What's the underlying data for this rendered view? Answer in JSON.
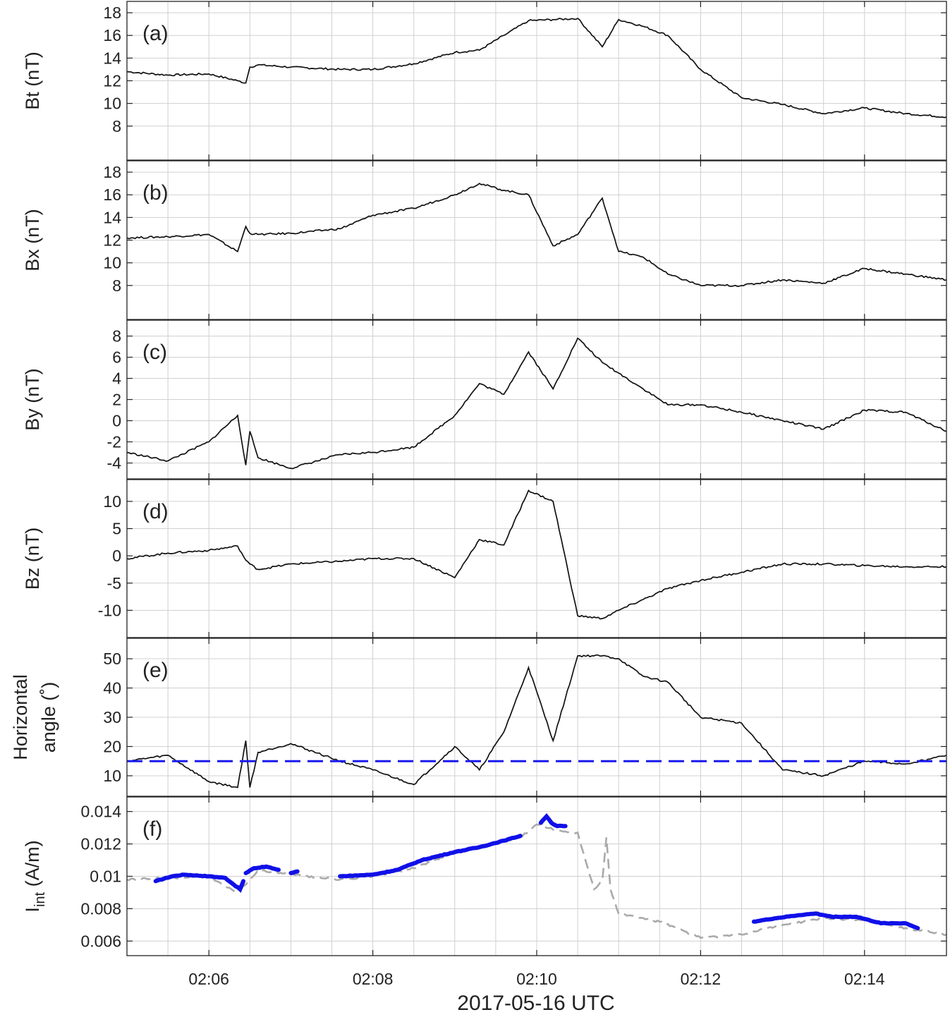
{
  "figure": {
    "xlabel": "2017-05-16 UTC",
    "x_ticks": [
      "02:06",
      "02:08",
      "02:10",
      "02:12",
      "02:14"
    ]
  },
  "chart_data": [
    {
      "type": "line",
      "panel": "(a)",
      "ylabel": "Bt (nT)",
      "xlim": [
        2.0833,
        2.25
      ],
      "ylim": [
        5,
        19
      ],
      "y_ticks": [
        8,
        10,
        12,
        14,
        16,
        18
      ],
      "series": [
        {
          "color": "#111111",
          "x_minutes_after_0205": [
            0,
            0.5,
            1.0,
            1.35,
            1.45,
            1.5,
            1.6,
            2.0,
            2.6,
            3.0,
            3.5,
            4.0,
            4.3,
            4.6,
            4.9,
            5.2,
            5.5,
            5.8,
            6.0,
            6.3,
            6.6,
            7.0,
            7.5,
            8.0,
            8.5,
            9.0,
            9.5,
            10.0
          ],
          "values": [
            12.8,
            12.5,
            12.6,
            12.0,
            11.8,
            13.2,
            13.4,
            13.2,
            13.0,
            13.0,
            13.5,
            14.5,
            14.7,
            16.0,
            17.3,
            17.4,
            17.5,
            15.0,
            17.4,
            16.8,
            16.0,
            13.0,
            10.5,
            9.9,
            9.1,
            9.6,
            9.1,
            8.8
          ]
        }
      ]
    },
    {
      "type": "line",
      "panel": "(b)",
      "ylabel": "Bx (nT)",
      "ylim": [
        5,
        19
      ],
      "y_ticks": [
        8,
        10,
        12,
        14,
        16,
        18
      ],
      "series": [
        {
          "color": "#111111",
          "values": [
            12.2,
            12.3,
            12.5,
            11.0,
            13.2,
            12.6,
            12.5,
            12.6,
            13.0,
            14.2,
            14.8,
            16.0,
            17.0,
            16.4,
            16.0,
            11.5,
            12.5,
            15.7,
            11.0,
            10.5,
            9.0,
            8.0,
            8.0,
            8.5,
            8.2,
            9.5,
            9.0,
            8.5
          ]
        }
      ]
    },
    {
      "type": "line",
      "panel": "(c)",
      "ylabel": "By (nT)",
      "ylim": [
        -5.5,
        9.5
      ],
      "y_ticks": [
        -4,
        -2,
        0,
        2,
        4,
        6,
        8
      ],
      "series": [
        {
          "color": "#111111",
          "values": [
            -3.0,
            -3.8,
            -2.0,
            0.5,
            -4.2,
            -1.0,
            -3.5,
            -4.5,
            -3.2,
            -3.0,
            -2.5,
            0.5,
            3.5,
            2.5,
            6.5,
            3.0,
            7.8,
            5.5,
            4.5,
            3.0,
            1.5,
            1.5,
            0.8,
            0.0,
            -0.8,
            1.0,
            0.8,
            -1.0
          ]
        }
      ]
    },
    {
      "type": "line",
      "panel": "(d)",
      "ylabel": "Bz (nT)",
      "ylim": [
        -15,
        14
      ],
      "y_ticks": [
        -10,
        -5,
        0,
        5,
        10
      ],
      "series": [
        {
          "color": "#111111",
          "values": [
            -0.5,
            0.5,
            1.0,
            1.8,
            -0.8,
            -1.5,
            -2.5,
            -1.5,
            -1.0,
            -0.5,
            -0.5,
            -4.0,
            3.0,
            2.0,
            12.0,
            10.0,
            -11.0,
            -11.5,
            -10.0,
            -8.0,
            -6.0,
            -4.5,
            -3.0,
            -1.5,
            -1.5,
            -1.8,
            -2.0,
            -2.0
          ]
        }
      ]
    },
    {
      "type": "line",
      "panel": "(e)",
      "ylabel": "Horizontal angle (˚)",
      "ylabel_line1": "Horizontal",
      "ylabel_line2": "angle (˚)",
      "ylim": [
        3,
        57
      ],
      "y_ticks": [
        10,
        20,
        30,
        40,
        50
      ],
      "series": [
        {
          "color": "#111111",
          "values": [
            15,
            17,
            8,
            6,
            22,
            6,
            18,
            21,
            15,
            12,
            7,
            20,
            12,
            25,
            47,
            22,
            51,
            51,
            50,
            44,
            42,
            30,
            28,
            12,
            10,
            15,
            14,
            17
          ]
        },
        {
          "name": "",
          "color": "#1a1aee",
          "style": "dashed",
          "constant": 15
        }
      ]
    },
    {
      "type": "line",
      "panel": "(f)",
      "ylabel": "I_int (A/m)",
      "ylabel_main": "I",
      "ylabel_sub": "int",
      "ylabel_unit": " (A/m)",
      "ylim": [
        0.0051,
        0.0149
      ],
      "y_ticks": [
        "0.006",
        "0.008",
        "0.01",
        "0.012",
        "0.014"
      ],
      "y_tick_values": [
        0.006,
        0.008,
        0.01,
        0.012,
        0.014
      ],
      "series": [
        {
          "color": "#aaaaaa",
          "style": "dashed",
          "x_minutes_after_0205": [
            0,
            0.5,
            1.0,
            1.3,
            1.45,
            1.6,
            2.0,
            2.6,
            3.0,
            3.5,
            4.0,
            4.3,
            4.8,
            5.0,
            5.3,
            5.5,
            5.6,
            5.7,
            5.8,
            5.85,
            5.9,
            6.0,
            6.5,
            7.0,
            7.5,
            8.0,
            8.5,
            9.0,
            9.5,
            10.0
          ],
          "values": [
            0.0098,
            0.0099,
            0.01,
            0.0091,
            0.0095,
            0.0104,
            0.0101,
            0.0098,
            0.01,
            0.0105,
            0.0115,
            0.0118,
            0.0124,
            0.0132,
            0.0128,
            0.0127,
            0.0109,
            0.0092,
            0.0097,
            0.0124,
            0.0092,
            0.0077,
            0.0072,
            0.0062,
            0.0064,
            0.007,
            0.0074,
            0.0073,
            0.0068,
            0.0064
          ]
        },
        {
          "color": "#1010e8",
          "segments": [
            {
              "x": [
                0.35,
                0.55,
                0.7,
                1.0,
                1.2,
                1.3,
                1.38,
                1.42
              ],
              "values": [
                0.0097,
                0.01,
                0.0101,
                0.01,
                0.0099,
                0.0095,
                0.0092,
                0.0097
              ]
            },
            {
              "x": [
                1.45,
                1.55,
                1.7,
                1.85
              ],
              "values": [
                0.0102,
                0.0105,
                0.0106,
                0.0104
              ]
            },
            {
              "x": [
                2.0,
                2.08
              ],
              "values": [
                0.0102,
                0.0103
              ]
            },
            {
              "x": [
                2.6,
                3.0,
                3.3,
                3.6,
                4.0,
                4.3,
                4.6,
                4.8
              ],
              "values": [
                0.01,
                0.0101,
                0.0104,
                0.011,
                0.0115,
                0.0118,
                0.0122,
                0.0125
              ]
            },
            {
              "x": [
                5.05,
                5.12,
                5.18,
                5.25,
                5.35
              ],
              "values": [
                0.0133,
                0.0137,
                0.0133,
                0.0131,
                0.0131
              ]
            },
            {
              "x": [
                7.65,
                7.9,
                8.2,
                8.4,
                8.6,
                8.9,
                9.2,
                9.5,
                9.65
              ],
              "values": [
                0.0072,
                0.0074,
                0.0076,
                0.0077,
                0.0075,
                0.0075,
                0.0071,
                0.0071,
                0.0068
              ]
            }
          ]
        }
      ]
    }
  ]
}
